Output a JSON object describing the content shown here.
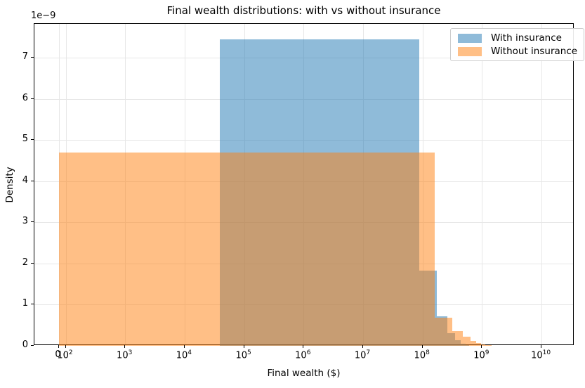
{
  "chart_data": {
    "type": "histogram",
    "title": "Final wealth distributions: with vs without insurance",
    "xlabel": "Final wealth ($)",
    "ylabel": "Density",
    "y_offset_text": "1e−9",
    "x_scale": "symlog",
    "grid": true,
    "legend_position": "upper right",
    "ylim_1e9": [
      0,
      7.82
    ],
    "y_ticks": [
      {
        "label": "0",
        "value": 0
      },
      {
        "label": "1",
        "value": 1
      },
      {
        "label": "2",
        "value": 2
      },
      {
        "label": "3",
        "value": 3
      },
      {
        "label": "4",
        "value": 4
      },
      {
        "label": "5",
        "value": 5
      },
      {
        "label": "6",
        "value": 6
      },
      {
        "label": "7",
        "value": 7
      }
    ],
    "x_ticks": [
      {
        "label": "0",
        "value": 0
      },
      {
        "label": "10",
        "sup": "2",
        "value": 100
      },
      {
        "label": "10",
        "sup": "3",
        "value": 1000
      },
      {
        "label": "10",
        "sup": "4",
        "value": 10000
      },
      {
        "label": "10",
        "sup": "5",
        "value": 100000
      },
      {
        "label": "10",
        "sup": "6",
        "value": 1000000
      },
      {
        "label": "10",
        "sup": "7",
        "value": 10000000
      },
      {
        "label": "10",
        "sup": "8",
        "value": 100000000
      },
      {
        "label": "10",
        "sup": "9",
        "value": 1000000000
      },
      {
        "label": "10",
        "sup": "10",
        "value": 10000000000
      }
    ],
    "series": [
      {
        "name": "With insurance",
        "color": "#1f77b4",
        "alpha": 0.5,
        "bin_edges": [
          39000,
          87400000,
          174800000,
          262000000,
          349500000,
          437000000,
          524000000,
          611500000
        ],
        "densities_1e9": [
          7.45,
          1.82,
          0.72,
          0.3,
          0.13,
          0.05,
          0.02
        ]
      },
      {
        "name": "Without insurance",
        "color": "#ff7f0e",
        "alpha": 0.5,
        "bin_edges": [
          0,
          160000000,
          320000000,
          480000000,
          640000000,
          800000000,
          960000000,
          1120000000,
          1280000000,
          1440000000
        ],
        "densities_1e9": [
          4.7,
          0.68,
          0.36,
          0.22,
          0.12,
          0.07,
          0.04,
          0.02,
          0.01
        ]
      }
    ]
  },
  "legend": {
    "items": [
      {
        "label": "With insurance"
      },
      {
        "label": "Without insurance"
      }
    ]
  }
}
